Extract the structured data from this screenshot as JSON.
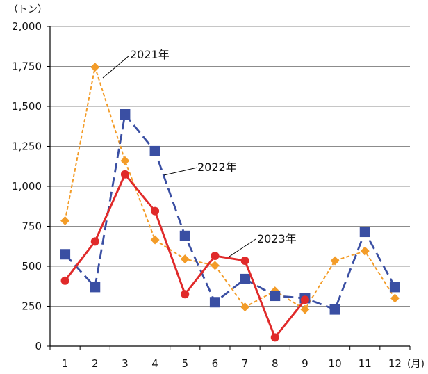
{
  "chart_data": {
    "type": "line",
    "y_unit": "（トン）",
    "x_unit": "(月)",
    "ylim": [
      0,
      2000
    ],
    "yticks": [
      0,
      250,
      500,
      750,
      1000,
      1250,
      1500,
      1750,
      2000
    ],
    "ytick_labels": [
      "0",
      "250",
      "500",
      "750",
      "1,000",
      "1,250",
      "1,500",
      "1,750",
      "2,000"
    ],
    "categories": [
      "1",
      "2",
      "3",
      "4",
      "5",
      "6",
      "7",
      "8",
      "9",
      "10",
      "11",
      "12"
    ],
    "grid": true,
    "legend": "none (direct labels)",
    "series": [
      {
        "name": "2021年",
        "color": "#F39C28",
        "line_style": "dotted",
        "marker": "diamond",
        "values": [
          785,
          1745,
          1160,
          665,
          545,
          505,
          245,
          345,
          230,
          535,
          595,
          300
        ]
      },
      {
        "name": "2022年",
        "color": "#3A4FA3",
        "line_style": "dashed",
        "marker": "square",
        "values": [
          575,
          370,
          1450,
          1220,
          690,
          275,
          420,
          315,
          300,
          230,
          715,
          370
        ]
      },
      {
        "name": "2023年",
        "color": "#E02A2A",
        "line_style": "solid",
        "marker": "circle",
        "values": [
          410,
          655,
          1075,
          845,
          325,
          565,
          535,
          55,
          290,
          null,
          null,
          null
        ]
      }
    ]
  }
}
